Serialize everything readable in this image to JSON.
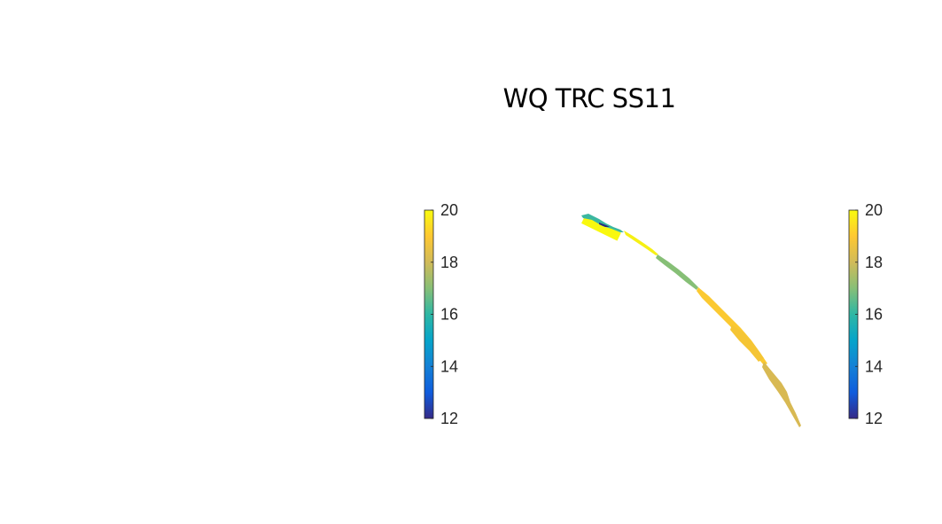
{
  "chart_data": {
    "type": "map",
    "title": "WQ TRC SS11",
    "colormap": "parula",
    "colormap_stops": [
      "#352a87",
      "#0f5cdd",
      "#1481d6",
      "#06a4ca",
      "#2eb7a4",
      "#87bf77",
      "#d1bb59",
      "#fec832",
      "#f9fb0e"
    ],
    "colorbars": [
      {
        "limits": [
          12,
          20
        ],
        "ticks": [
          20,
          18,
          16,
          14,
          12
        ]
      },
      {
        "limits": [
          12,
          20
        ],
        "ticks": [
          20,
          18,
          16,
          14,
          12
        ]
      }
    ]
  }
}
